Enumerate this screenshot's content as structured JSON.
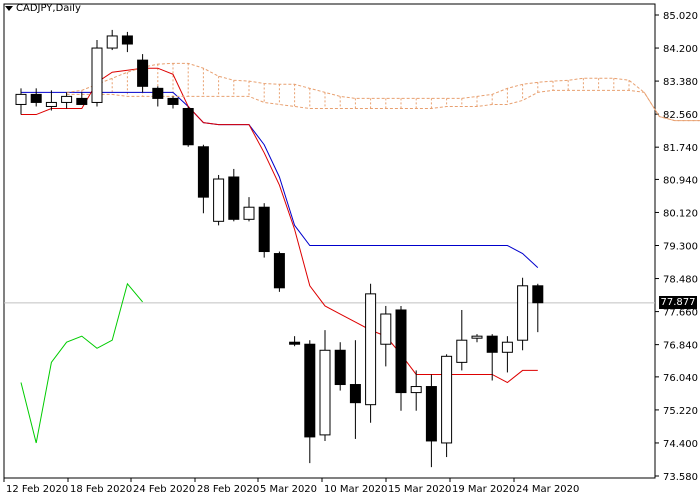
{
  "chart_data": {
    "type": "candlestick",
    "title": "CADJPY,Daily",
    "current_price": "77.877",
    "y_ticks": [
      "85.020",
      "84.200",
      "83.380",
      "82.560",
      "81.740",
      "80.940",
      "80.120",
      "79.300",
      "78.480",
      "77.660",
      "76.840",
      "76.040",
      "75.220",
      "74.400",
      "73.580"
    ],
    "x_ticks": [
      "12 Feb 2020",
      "18 Feb 2020",
      "24 Feb 2020",
      "28 Feb 2020",
      "5 Mar 2020",
      "10 Mar 2020",
      "15 Mar 2020",
      "19 Mar 2020",
      "24 Mar 2020"
    ],
    "ylim": [
      73.58,
      85.02
    ],
    "candles": [
      {
        "o": 82.8,
        "h": 83.2,
        "l": 82.55,
        "c": 83.05
      },
      {
        "o": 83.05,
        "h": 83.2,
        "l": 82.75,
        "c": 82.85
      },
      {
        "o": 82.75,
        "h": 83.15,
        "l": 82.65,
        "c": 82.85
      },
      {
        "o": 82.85,
        "h": 83.1,
        "l": 82.7,
        "c": 83.0
      },
      {
        "o": 82.95,
        "h": 83.1,
        "l": 82.85,
        "c": 82.8
      },
      {
        "o": 82.85,
        "h": 84.4,
        "l": 82.75,
        "c": 84.2
      },
      {
        "o": 84.2,
        "h": 84.65,
        "l": 84.15,
        "c": 84.5
      },
      {
        "o": 84.5,
        "h": 84.6,
        "l": 84.1,
        "c": 84.3
      },
      {
        "o": 83.9,
        "h": 84.05,
        "l": 83.1,
        "c": 83.25
      },
      {
        "o": 83.2,
        "h": 83.25,
        "l": 82.75,
        "c": 82.95
      },
      {
        "o": 82.95,
        "h": 83.0,
        "l": 82.7,
        "c": 82.8
      },
      {
        "o": 82.7,
        "h": 82.75,
        "l": 81.75,
        "c": 81.8
      },
      {
        "o": 81.75,
        "h": 81.8,
        "l": 80.1,
        "c": 80.5
      },
      {
        "o": 79.9,
        "h": 81.05,
        "l": 79.8,
        "c": 80.95
      },
      {
        "o": 81.0,
        "h": 81.2,
        "l": 79.9,
        "c": 79.95
      },
      {
        "o": 79.95,
        "h": 80.5,
        "l": 79.9,
        "c": 80.25
      },
      {
        "o": 80.25,
        "h": 80.35,
        "l": 79.0,
        "c": 79.15
      },
      {
        "o": 79.1,
        "h": 79.15,
        "l": 78.15,
        "c": 78.25
      },
      {
        "o": 76.9,
        "h": 77.05,
        "l": 76.8,
        "c": 76.85
      },
      {
        "o": 76.85,
        "h": 76.95,
        "l": 73.9,
        "c": 74.55
      },
      {
        "o": 74.6,
        "h": 77.2,
        "l": 74.45,
        "c": 76.7
      },
      {
        "o": 76.7,
        "h": 76.9,
        "l": 75.7,
        "c": 75.85
      },
      {
        "o": 75.85,
        "h": 76.95,
        "l": 74.5,
        "c": 75.4
      },
      {
        "o": 75.35,
        "h": 78.35,
        "l": 74.9,
        "c": 78.1
      },
      {
        "o": 76.85,
        "h": 77.8,
        "l": 76.3,
        "c": 77.6
      },
      {
        "o": 77.7,
        "h": 77.8,
        "l": 75.2,
        "c": 75.65
      },
      {
        "o": 75.65,
        "h": 76.2,
        "l": 75.2,
        "c": 75.8
      },
      {
        "o": 75.8,
        "h": 76.1,
        "l": 73.8,
        "c": 74.45
      },
      {
        "o": 74.4,
        "h": 76.6,
        "l": 74.05,
        "c": 76.55
      },
      {
        "o": 76.4,
        "h": 77.7,
        "l": 76.2,
        "c": 76.95
      },
      {
        "o": 77.0,
        "h": 77.1,
        "l": 76.9,
        "c": 77.05
      },
      {
        "o": 77.05,
        "h": 77.1,
        "l": 75.95,
        "c": 76.65
      },
      {
        "o": 76.65,
        "h": 77.05,
        "l": 76.15,
        "c": 76.9
      },
      {
        "o": 76.95,
        "h": 78.5,
        "l": 76.7,
        "c": 78.3
      },
      {
        "o": 78.3,
        "h": 78.35,
        "l": 77.15,
        "c": 77.88
      }
    ],
    "series": [
      {
        "name": "",
        "color": "#0000cc",
        "start": 0,
        "values": [
          83.1,
          83.1,
          83.1,
          83.1,
          83.1,
          83.1,
          83.1,
          83.1,
          83.1,
          83.1,
          83.1,
          82.75,
          82.35,
          82.3,
          82.3,
          82.3,
          81.8,
          81.0,
          79.8,
          79.3,
          79.3,
          79.3,
          79.3,
          79.3,
          79.3,
          79.3,
          79.3,
          79.3,
          79.3,
          79.3,
          79.3,
          79.3,
          79.3,
          79.1,
          78.75
        ]
      },
      {
        "name": "",
        "color": "#dd0000",
        "start": 0,
        "values": [
          82.55,
          82.55,
          82.7,
          82.7,
          82.7,
          83.35,
          83.6,
          83.65,
          83.7,
          83.7,
          83.55,
          82.75,
          82.35,
          82.3,
          82.3,
          82.3,
          81.6,
          80.8,
          79.7,
          78.3,
          77.8,
          77.6,
          77.4,
          77.2,
          77.05,
          76.6,
          76.1,
          76.1,
          76.1,
          76.1,
          76.1,
          76.1,
          75.9,
          76.2,
          76.2
        ]
      },
      {
        "name": "",
        "color": "#00cc00",
        "start": 0,
        "values": [
          75.9,
          74.4,
          76.4,
          76.9,
          77.05,
          76.75,
          76.95,
          78.35,
          77.9
        ]
      },
      {
        "name": "",
        "color": "#e8a070",
        "start": 3,
        "dashed": true,
        "values": [
          83.1,
          83.15,
          83.3,
          83.45,
          83.6,
          83.72,
          83.8,
          83.82,
          83.82,
          83.7,
          83.5,
          83.4,
          83.38,
          83.32,
          83.3,
          83.3,
          83.2,
          83.1,
          83.0,
          82.95,
          82.95,
          82.95,
          82.95,
          82.95,
          82.95,
          82.95,
          82.95,
          83.0,
          83.05,
          83.2,
          83.3,
          83.35,
          83.38,
          83.4,
          83.45,
          83.45,
          83.45,
          83.4,
          83.1,
          82.5,
          82.4,
          82.4,
          82.4
        ]
      },
      {
        "name": "",
        "color": "#e8a070",
        "start": 3,
        "dashed": true,
        "values": [
          83.05,
          83.05,
          83.05,
          83.05,
          83.0,
          83.0,
          83.0,
          83.0,
          83.0,
          83.0,
          83.0,
          83.0,
          83.0,
          82.85,
          82.8,
          82.75,
          82.7,
          82.7,
          82.7,
          82.7,
          82.7,
          82.7,
          82.7,
          82.7,
          82.7,
          82.75,
          82.75,
          82.75,
          82.8,
          82.8,
          82.9,
          83.1,
          83.15,
          83.15,
          83.15,
          83.15,
          83.15,
          83.15,
          83.1,
          82.5,
          82.4,
          82.4,
          82.4
        ]
      }
    ]
  }
}
